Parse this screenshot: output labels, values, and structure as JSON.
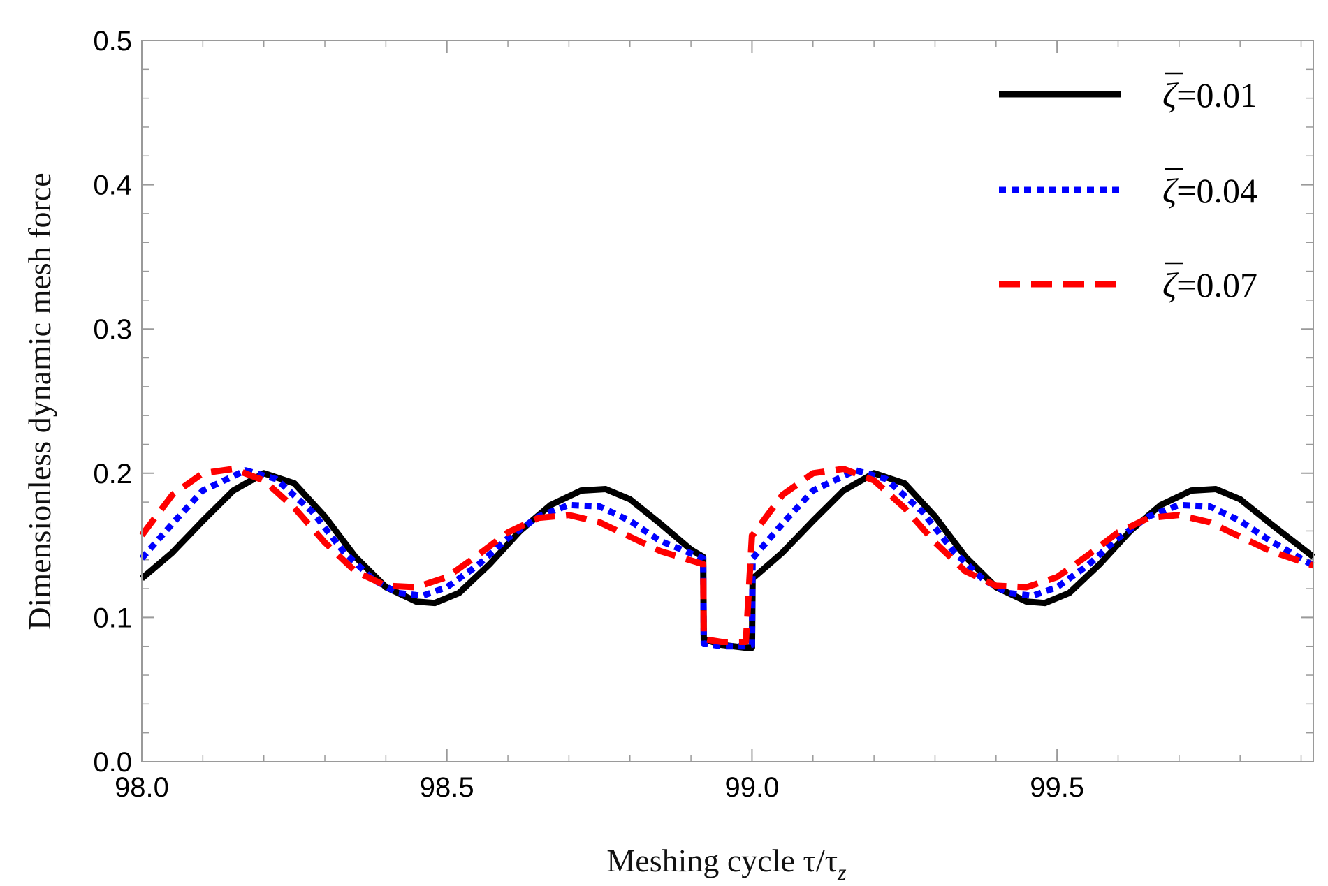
{
  "chart_data": {
    "type": "line",
    "title": "",
    "xlabel": "Meshing cycle τ/τ",
    "xlabel_sub": "z",
    "ylabel": "Dimensionless dynamic mesh force",
    "xlim": [
      98.0,
      99.92
    ],
    "ylim": [
      0.0,
      0.5
    ],
    "xticks": [
      98.0,
      98.5,
      99.0,
      99.5
    ],
    "xtick_labels": [
      "98.0",
      "98.5",
      "99.0",
      "99.5"
    ],
    "yticks": [
      0.0,
      0.1,
      0.2,
      0.3,
      0.4,
      0.5
    ],
    "ytick_labels": [
      "0.0",
      "0.1",
      "0.2",
      "0.3",
      "0.4",
      "0.5"
    ],
    "legend_position": "top-right",
    "series": [
      {
        "name": "ζ̄=0.01",
        "label_prefix": "ζ",
        "label_value": "=0.01",
        "color": "#000000",
        "style": "solid",
        "x": [
          98.0,
          98.05,
          98.1,
          98.15,
          98.2,
          98.25,
          98.3,
          98.35,
          98.4,
          98.45,
          98.48,
          98.52,
          98.57,
          98.62,
          98.67,
          98.72,
          98.76,
          98.8,
          98.85,
          98.9,
          98.92,
          98.921,
          98.95,
          98.99,
          99.0,
          99.001,
          99.05,
          99.1,
          99.15,
          99.2,
          99.25,
          99.3,
          99.35,
          99.4,
          99.45,
          99.48,
          99.52,
          99.57,
          99.62,
          99.67,
          99.72,
          99.76,
          99.8,
          99.85,
          99.92
        ],
        "y": [
          0.127,
          0.145,
          0.167,
          0.188,
          0.2,
          0.193,
          0.17,
          0.142,
          0.121,
          0.111,
          0.11,
          0.117,
          0.137,
          0.16,
          0.178,
          0.188,
          0.189,
          0.182,
          0.165,
          0.147,
          0.142,
          0.085,
          0.081,
          0.079,
          0.079,
          0.127,
          0.145,
          0.167,
          0.188,
          0.2,
          0.193,
          0.17,
          0.142,
          0.121,
          0.111,
          0.11,
          0.117,
          0.137,
          0.16,
          0.178,
          0.188,
          0.189,
          0.182,
          0.165,
          0.142
        ]
      },
      {
        "name": "ζ̄=0.04",
        "label_prefix": "ζ",
        "label_value": "=0.04",
        "color": "#0000ff",
        "style": "dotted",
        "x": [
          98.0,
          98.05,
          98.1,
          98.17,
          98.22,
          98.28,
          98.33,
          98.38,
          98.42,
          98.46,
          98.5,
          98.55,
          98.6,
          98.65,
          98.7,
          98.75,
          98.8,
          98.85,
          98.92,
          98.921,
          98.95,
          98.99,
          99.0,
          99.001,
          99.05,
          99.1,
          99.17,
          99.22,
          99.28,
          99.33,
          99.38,
          99.42,
          99.46,
          99.5,
          99.55,
          99.6,
          99.65,
          99.7,
          99.75,
          99.8,
          99.85,
          99.92
        ],
        "y": [
          0.141,
          0.165,
          0.188,
          0.202,
          0.196,
          0.173,
          0.146,
          0.126,
          0.117,
          0.115,
          0.121,
          0.136,
          0.155,
          0.17,
          0.178,
          0.177,
          0.167,
          0.153,
          0.141,
          0.082,
          0.08,
          0.08,
          0.081,
          0.141,
          0.165,
          0.188,
          0.202,
          0.196,
          0.173,
          0.146,
          0.126,
          0.117,
          0.115,
          0.121,
          0.136,
          0.155,
          0.17,
          0.178,
          0.177,
          0.167,
          0.153,
          0.136
        ]
      },
      {
        "name": "ζ̄=0.07",
        "label_prefix": "ζ",
        "label_value": "=0.07",
        "color": "#ff0000",
        "style": "dashed",
        "x": [
          98.0,
          98.05,
          98.1,
          98.15,
          98.2,
          98.25,
          98.3,
          98.35,
          98.4,
          98.45,
          98.5,
          98.55,
          98.6,
          98.65,
          98.7,
          98.75,
          98.8,
          98.85,
          98.92,
          98.921,
          98.95,
          98.99,
          99.0,
          99.001,
          99.05,
          99.1,
          99.15,
          99.2,
          99.25,
          99.3,
          99.35,
          99.4,
          99.45,
          99.5,
          99.55,
          99.6,
          99.65,
          99.7,
          99.75,
          99.8,
          99.85,
          99.92
        ],
        "y": [
          0.157,
          0.185,
          0.2,
          0.203,
          0.195,
          0.176,
          0.152,
          0.132,
          0.122,
          0.121,
          0.128,
          0.143,
          0.159,
          0.169,
          0.171,
          0.166,
          0.156,
          0.146,
          0.137,
          0.085,
          0.083,
          0.083,
          0.157,
          0.157,
          0.185,
          0.2,
          0.203,
          0.195,
          0.176,
          0.152,
          0.132,
          0.122,
          0.121,
          0.128,
          0.143,
          0.159,
          0.169,
          0.171,
          0.166,
          0.156,
          0.146,
          0.136
        ]
      }
    ]
  }
}
